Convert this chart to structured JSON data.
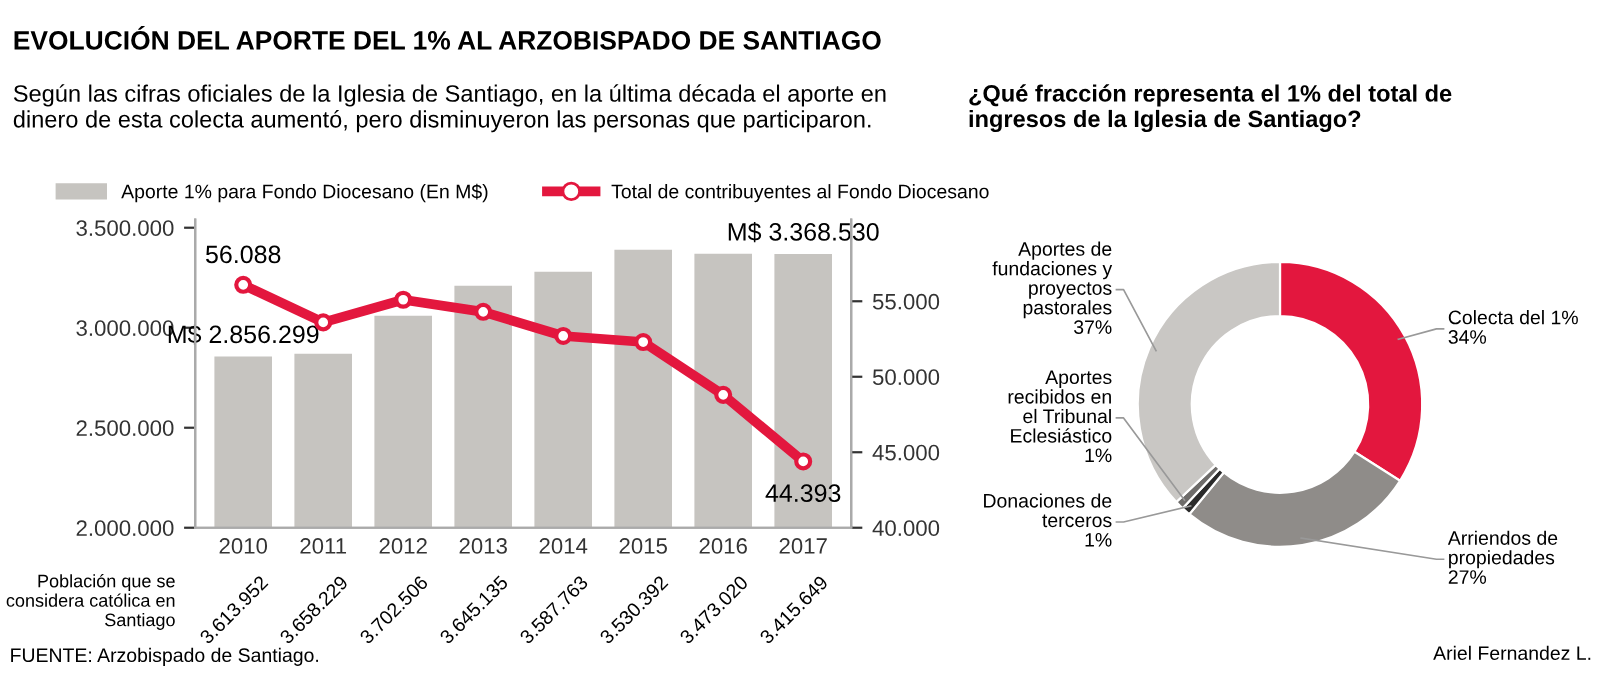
{
  "chart_data": [
    {
      "type": "bar",
      "title": "EVOLUCIÓN DEL APORTE DEL 1% AL ARZOBISPADO DE SANTIAGO",
      "subtitle": "Según las cifras oficiales de la Iglesia de Santiago, en la última década el aporte en\ndinero de esta colecta aumentó, pero disminuyeron las personas que participaron.",
      "categories": [
        "2010",
        "2011",
        "2012",
        "2013",
        "2014",
        "2015",
        "2016",
        "2017"
      ],
      "series": [
        {
          "name": "Aporte 1% para Fondo Diocesano (En M$)",
          "type": "bar",
          "color": "#c6c4c0",
          "values": [
            2856299,
            2870000,
            3060000,
            3210000,
            3280000,
            3390000,
            3370000,
            3368530
          ],
          "value_labels": [
            "M$ 2.856.299",
            null,
            null,
            null,
            null,
            null,
            null,
            "M$ 3.368.530"
          ]
        },
        {
          "name": "Total de contribuyentes al Fondo Diocesano",
          "type": "line",
          "axis": "y2",
          "color": "#e3173e",
          "values": [
            56088,
            53600,
            55100,
            54300,
            52700,
            52300,
            48800,
            44393
          ],
          "value_labels": [
            "56.088",
            null,
            null,
            null,
            null,
            null,
            null,
            "44.393"
          ]
        }
      ],
      "ylim": [
        2000000,
        3540000
      ],
      "yticks": [
        {
          "value": 2000000,
          "label": "2.000.000"
        },
        {
          "value": 2500000,
          "label": "2.500.000"
        },
        {
          "value": 3000000,
          "label": "3.000.000"
        },
        {
          "value": 3500000,
          "label": "3.500.000"
        }
      ],
      "y2lim": [
        40000,
        60400
      ],
      "y2ticks": [
        {
          "value": 40000,
          "label": "40.000"
        },
        {
          "value": 45000,
          "label": "45.000"
        },
        {
          "value": 50000,
          "label": "50.000"
        },
        {
          "value": 55000,
          "label": "55.000"
        }
      ],
      "marker": "circle",
      "grid": false,
      "legend": "top",
      "annotations": [
        "Población que se considera católica en Santiago",
        "FUENTE: Arzobispado de Santiago.",
        "3.613.952",
        "3.658.229",
        "3.702.506",
        "3.645.135",
        "3.587.763",
        "3.530.392",
        "3.473.020",
        "3.415.649"
      ]
    },
    {
      "type": "donut",
      "title": "¿Qué fracción representa el 1% del total de\ningresos de la Iglesia de Santiago?",
      "categories": [
        "Colecta del 1%",
        "Arriendos de\npropiedades",
        "Donaciones de\nterceros",
        "Aportes\nrecibidos en\nel Tribunal\nEclesiástico",
        "Aportes de\nfundaciones y\nproyectos\npastorales"
      ],
      "values": [
        34,
        27,
        1,
        1,
        37
      ],
      "colors": [
        "#e3173e",
        "#8f8c89",
        "#2a2a2a",
        "#6e6c6a",
        "#c9c7c4"
      ],
      "value_labels": [
        "34%",
        "27%",
        "1%",
        "1%",
        "37%"
      ],
      "annotations": [
        "Ariel Fernandez L."
      ]
    }
  ]
}
